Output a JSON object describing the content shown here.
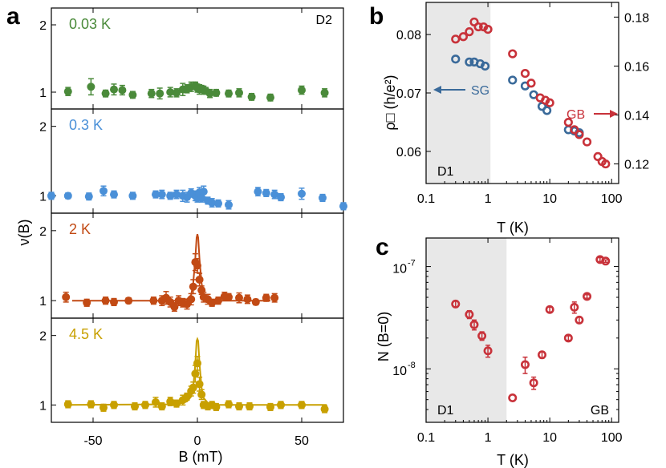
{
  "panel_labels": {
    "a": "a",
    "b": "b",
    "c": "c"
  },
  "colors": {
    "green": "#4a8a3a",
    "blue": "#4a90d8",
    "orange": "#c24a14",
    "gold": "#c8a000",
    "red": "#c8323a",
    "navy": "#3a6a9a",
    "shade": "#e8e8e8"
  },
  "chart_data": [
    {
      "id": "a",
      "type": "scatter",
      "title": "",
      "xlabel": "B (mT)",
      "ylabel": "ν(B)",
      "xlim": [
        -70,
        70
      ],
      "x_ticks": [
        -50,
        0,
        50
      ],
      "x_tick_labels": [
        "-50",
        "0",
        "50"
      ],
      "device_label": "D2",
      "subpanels": [
        {
          "label": "0.03 K",
          "color": "green",
          "ylim": [
            0.75,
            2.25
          ],
          "y_ticks": [
            1,
            2
          ],
          "y_tick_labels": [
            "1",
            "2"
          ],
          "points": [
            [
              -62,
              1.01,
              0.06
            ],
            [
              -51,
              1.08,
              0.12
            ],
            [
              -44,
              0.98,
              0.05
            ],
            [
              -40,
              1.04,
              0.08
            ],
            [
              -36,
              1.03,
              0.07
            ],
            [
              -31,
              0.96,
              0.05
            ],
            [
              -22,
              0.98,
              0.06
            ],
            [
              -18,
              0.98,
              0.08
            ],
            [
              -13,
              1.0,
              0.07
            ],
            [
              -10,
              0.99,
              0.06
            ],
            [
              -7,
              1.04,
              0.09
            ],
            [
              -5,
              1.05,
              0.06
            ],
            [
              -3,
              1.08,
              0.07
            ],
            [
              -1,
              1.1,
              0.05
            ],
            [
              0,
              1.06,
              0.06
            ],
            [
              1,
              1.04,
              0.07
            ],
            [
              2,
              1.05,
              0.05
            ],
            [
              3,
              1.03,
              0.06
            ],
            [
              4,
              1.02,
              0.05
            ],
            [
              6,
              0.98,
              0.06
            ],
            [
              9,
              0.99,
              0.05
            ],
            [
              15,
              0.98,
              0.05
            ],
            [
              20,
              0.99,
              0.06
            ],
            [
              26,
              0.93,
              0.05
            ],
            [
              35,
              0.92,
              0.05
            ],
            [
              50,
              1.03,
              0.06
            ],
            [
              61,
              0.99,
              0.06
            ]
          ],
          "fit": []
        },
        {
          "label": "0.3 K",
          "color": "blue",
          "ylim": [
            0.75,
            2.25
          ],
          "y_ticks": [
            1,
            2
          ],
          "y_tick_labels": [
            "1",
            "2"
          ],
          "points": [
            [
              -70,
              1.0,
              0.05
            ],
            [
              -62,
              1.0,
              0.04
            ],
            [
              -52,
              0.99,
              0.05
            ],
            [
              -45,
              1.07,
              0.07
            ],
            [
              -40,
              1.02,
              0.05
            ],
            [
              -31,
              1.0,
              0.05
            ],
            [
              -20,
              1.02,
              0.05
            ],
            [
              -17,
              1.02,
              0.06
            ],
            [
              -13,
              1.0,
              0.05
            ],
            [
              -10,
              1.02,
              0.06
            ],
            [
              -7,
              1.0,
              0.08
            ],
            [
              -5,
              0.98,
              0.07
            ],
            [
              -3,
              1.04,
              0.06
            ],
            [
              -1,
              1.0,
              0.07
            ],
            [
              0,
              0.97,
              0.06
            ],
            [
              1,
              1.05,
              0.07
            ],
            [
              2,
              0.97,
              0.06
            ],
            [
              3,
              1.06,
              0.08
            ],
            [
              5,
              0.93,
              0.05
            ],
            [
              7,
              0.9,
              0.06
            ],
            [
              10,
              0.89,
              0.05
            ],
            [
              15,
              0.87,
              0.06
            ],
            [
              29,
              1.06,
              0.06
            ],
            [
              33,
              1.04,
              0.05
            ],
            [
              37,
              1.02,
              0.06
            ],
            [
              40,
              0.98,
              0.05
            ],
            [
              50,
              1.03,
              0.08
            ],
            [
              60,
              0.97,
              0.05
            ],
            [
              70,
              0.85,
              0.05
            ]
          ],
          "fit": []
        },
        {
          "label": "2 K",
          "color": "orange",
          "ylim": [
            0.75,
            2.25
          ],
          "y_ticks": [
            1,
            2
          ],
          "y_tick_labels": [
            "1",
            "2"
          ],
          "points": [
            [
              -63,
              1.05,
              0.07
            ],
            [
              -53,
              0.97,
              0.05
            ],
            [
              -44,
              1.0,
              0.05
            ],
            [
              -40,
              0.98,
              0.05
            ],
            [
              -33,
              1.0,
              0.04
            ],
            [
              -21,
              1.0,
              0.05
            ],
            [
              -17,
              1.0,
              0.07
            ],
            [
              -15,
              1.04,
              0.09
            ],
            [
              -13,
              0.98,
              0.07
            ],
            [
              -11,
              0.91,
              0.06
            ],
            [
              -9,
              1.0,
              0.07
            ],
            [
              -7,
              0.97,
              0.06
            ],
            [
              -5,
              0.95,
              0.07
            ],
            [
              -3,
              1.02,
              0.08
            ],
            [
              -2,
              1.2,
              0.1
            ],
            [
              -1,
              1.55,
              0.12
            ],
            [
              0,
              1.5,
              0.1
            ],
            [
              1,
              1.3,
              0.09
            ],
            [
              2,
              1.15,
              0.06
            ],
            [
              3,
              1.05,
              0.07
            ],
            [
              5,
              1.02,
              0.07
            ],
            [
              7,
              0.97,
              0.05
            ],
            [
              10,
              1.0,
              0.05
            ],
            [
              13,
              1.06,
              0.06
            ],
            [
              15,
              1.05,
              0.05
            ],
            [
              20,
              1.04,
              0.07
            ],
            [
              24,
              1.02,
              0.06
            ],
            [
              28,
              0.98,
              0.04
            ],
            [
              33,
              1.04,
              0.05
            ],
            [
              37,
              1.04,
              0.06
            ]
          ],
          "fit": [
            [
              -60,
              1.0
            ],
            [
              -10,
              1.0
            ],
            [
              -5,
              1.02
            ],
            [
              -3,
              1.08
            ],
            [
              -2,
              1.25
            ],
            [
              -1,
              1.6
            ],
            [
              -0.4,
              1.9
            ],
            [
              0,
              1.95
            ],
            [
              0.4,
              1.9
            ],
            [
              1,
              1.6
            ],
            [
              2,
              1.25
            ],
            [
              3,
              1.08
            ],
            [
              5,
              1.02
            ],
            [
              10,
              1.0
            ],
            [
              35,
              1.0
            ]
          ]
        },
        {
          "label": "4.5 K",
          "color": "gold",
          "ylim": [
            0.75,
            2.25
          ],
          "y_ticks": [
            1,
            2
          ],
          "y_tick_labels": [
            "1",
            "2"
          ],
          "points": [
            [
              -62,
              1.01,
              0.05
            ],
            [
              -51,
              1.01,
              0.05
            ],
            [
              -45,
              0.96,
              0.05
            ],
            [
              -40,
              1.0,
              0.05
            ],
            [
              -30,
              0.98,
              0.05
            ],
            [
              -25,
              1.0,
              0.05
            ],
            [
              -20,
              1.04,
              0.07
            ],
            [
              -17,
              0.98,
              0.05
            ],
            [
              -13,
              1.05,
              0.06
            ],
            [
              -10,
              1.02,
              0.05
            ],
            [
              -7,
              1.07,
              0.07
            ],
            [
              -5,
              1.12,
              0.05
            ],
            [
              -3,
              1.2,
              0.07
            ],
            [
              -2,
              1.25,
              0.08
            ],
            [
              -1,
              1.45,
              0.12
            ],
            [
              0,
              1.6,
              0.1
            ],
            [
              1,
              1.3,
              0.1
            ],
            [
              2,
              1.15,
              0.07
            ],
            [
              3,
              1.0,
              0.05
            ],
            [
              5,
              0.98,
              0.05
            ],
            [
              7,
              1.0,
              0.05
            ],
            [
              9,
              0.97,
              0.05
            ],
            [
              15,
              1.01,
              0.05
            ],
            [
              20,
              0.98,
              0.05
            ],
            [
              25,
              0.98,
              0.05
            ],
            [
              35,
              0.97,
              0.05
            ],
            [
              40,
              1.0,
              0.05
            ],
            [
              50,
              1.0,
              0.05
            ],
            [
              61,
              0.94,
              0.05
            ]
          ],
          "fit": [
            [
              -62,
              1.0
            ],
            [
              -10,
              1.01
            ],
            [
              -5,
              1.05
            ],
            [
              -3,
              1.12
            ],
            [
              -2,
              1.25
            ],
            [
              -1,
              1.6
            ],
            [
              -0.4,
              1.92
            ],
            [
              0,
              1.95
            ],
            [
              0.4,
              1.92
            ],
            [
              1,
              1.6
            ],
            [
              2,
              1.25
            ],
            [
              3,
              1.1
            ],
            [
              5,
              1.03
            ],
            [
              10,
              1.0
            ],
            [
              62,
              1.0
            ]
          ]
        }
      ]
    },
    {
      "id": "b",
      "type": "scatter",
      "title": "",
      "xlabel": "T (K)",
      "ylabel": "ρ□ (h/e²)",
      "xscale": "log",
      "xlim": [
        0.1,
        130
      ],
      "ylim_left": [
        0.0545,
        0.0855
      ],
      "ylim_right": [
        0.112,
        0.186
      ],
      "x_ticks": [
        0.1,
        1,
        10,
        100
      ],
      "x_tick_labels": [
        "0.1",
        "1",
        "10",
        "100"
      ],
      "y_ticks_left": [
        0.06,
        0.07,
        0.08
      ],
      "y_tick_labels_left": [
        "0.06",
        "0.07",
        "0.08"
      ],
      "y_ticks_right": [
        0.12,
        0.14,
        0.16,
        0.18
      ],
      "y_tick_labels_right": [
        "0.12",
        "0.14",
        "0.16",
        "0.18"
      ],
      "shade_xmax": 1.1,
      "device_label": "D1",
      "series": [
        {
          "name": "SG",
          "color": "navy",
          "axis": "left",
          "x": [
            0.3,
            0.5,
            0.6,
            0.75,
            0.9,
            2.5,
            4.0,
            5.5,
            7.5,
            9.0,
            20,
            25,
            30
          ],
          "y": [
            0.0758,
            0.0753,
            0.0753,
            0.075,
            0.0746,
            0.0722,
            0.0712,
            0.0697,
            0.0677,
            0.067,
            0.0637,
            0.0635,
            0.0632
          ]
        },
        {
          "name": "GB",
          "color": "red",
          "axis": "right",
          "x": [
            0.3,
            0.4,
            0.5,
            0.6,
            0.7,
            0.85,
            1.0,
            2.5,
            4.0,
            5.0,
            7.0,
            8.5,
            10,
            20,
            25,
            30,
            40,
            60,
            70,
            80
          ],
          "y": [
            0.171,
            0.172,
            0.174,
            0.178,
            0.176,
            0.176,
            0.175,
            0.165,
            0.157,
            0.153,
            0.147,
            0.146,
            0.145,
            0.137,
            0.134,
            0.132,
            0.129,
            0.123,
            0.121,
            0.12
          ]
        }
      ],
      "annotations": {
        "sg": "SG",
        "gb": "GB"
      }
    },
    {
      "id": "c",
      "type": "scatter",
      "title": "",
      "xlabel": "T (K)",
      "ylabel": "N (B=0)",
      "xscale": "log",
      "yscale": "log",
      "xlim": [
        0.1,
        130
      ],
      "ylim": [
        3e-09,
        1.9e-07
      ],
      "x_ticks": [
        0.1,
        1,
        10,
        100
      ],
      "x_tick_labels": [
        "0.1",
        "1",
        "10",
        "100"
      ],
      "y_ticks": [
        1e-08,
        1e-07
      ],
      "y_tick_labels": [
        {
          "base": "10",
          "exp": "-8"
        },
        {
          "base": "10",
          "exp": "-7"
        }
      ],
      "shade_xmax": 2.0,
      "device_labels": {
        "left": "D1",
        "right": "GB"
      },
      "series": [
        {
          "name": "GB",
          "color": "red",
          "x": [
            0.3,
            0.5,
            0.6,
            0.8,
            1.0,
            2.5,
            4.0,
            5.5,
            7.5,
            10,
            20,
            25,
            30,
            40,
            65,
            80
          ],
          "y": [
            4.3e-08,
            3.4e-08,
            2.7e-08,
            2.1e-08,
            1.5e-08,
            5.2e-09,
            1.1e-08,
            7.3e-09,
            1.37e-08,
            3.8e-08,
            2e-08,
            4e-08,
            3e-08,
            5.1e-08,
            1.17e-07,
            1.13e-07
          ],
          "err": [
            3e-09,
            3e-09,
            3e-09,
            2e-09,
            2e-09,
            0,
            2e-09,
            1e-09,
            1e-09,
            2e-09,
            1e-09,
            5e-09,
            2e-09,
            2e-09,
            5e-09,
            3e-09
          ]
        }
      ]
    }
  ]
}
